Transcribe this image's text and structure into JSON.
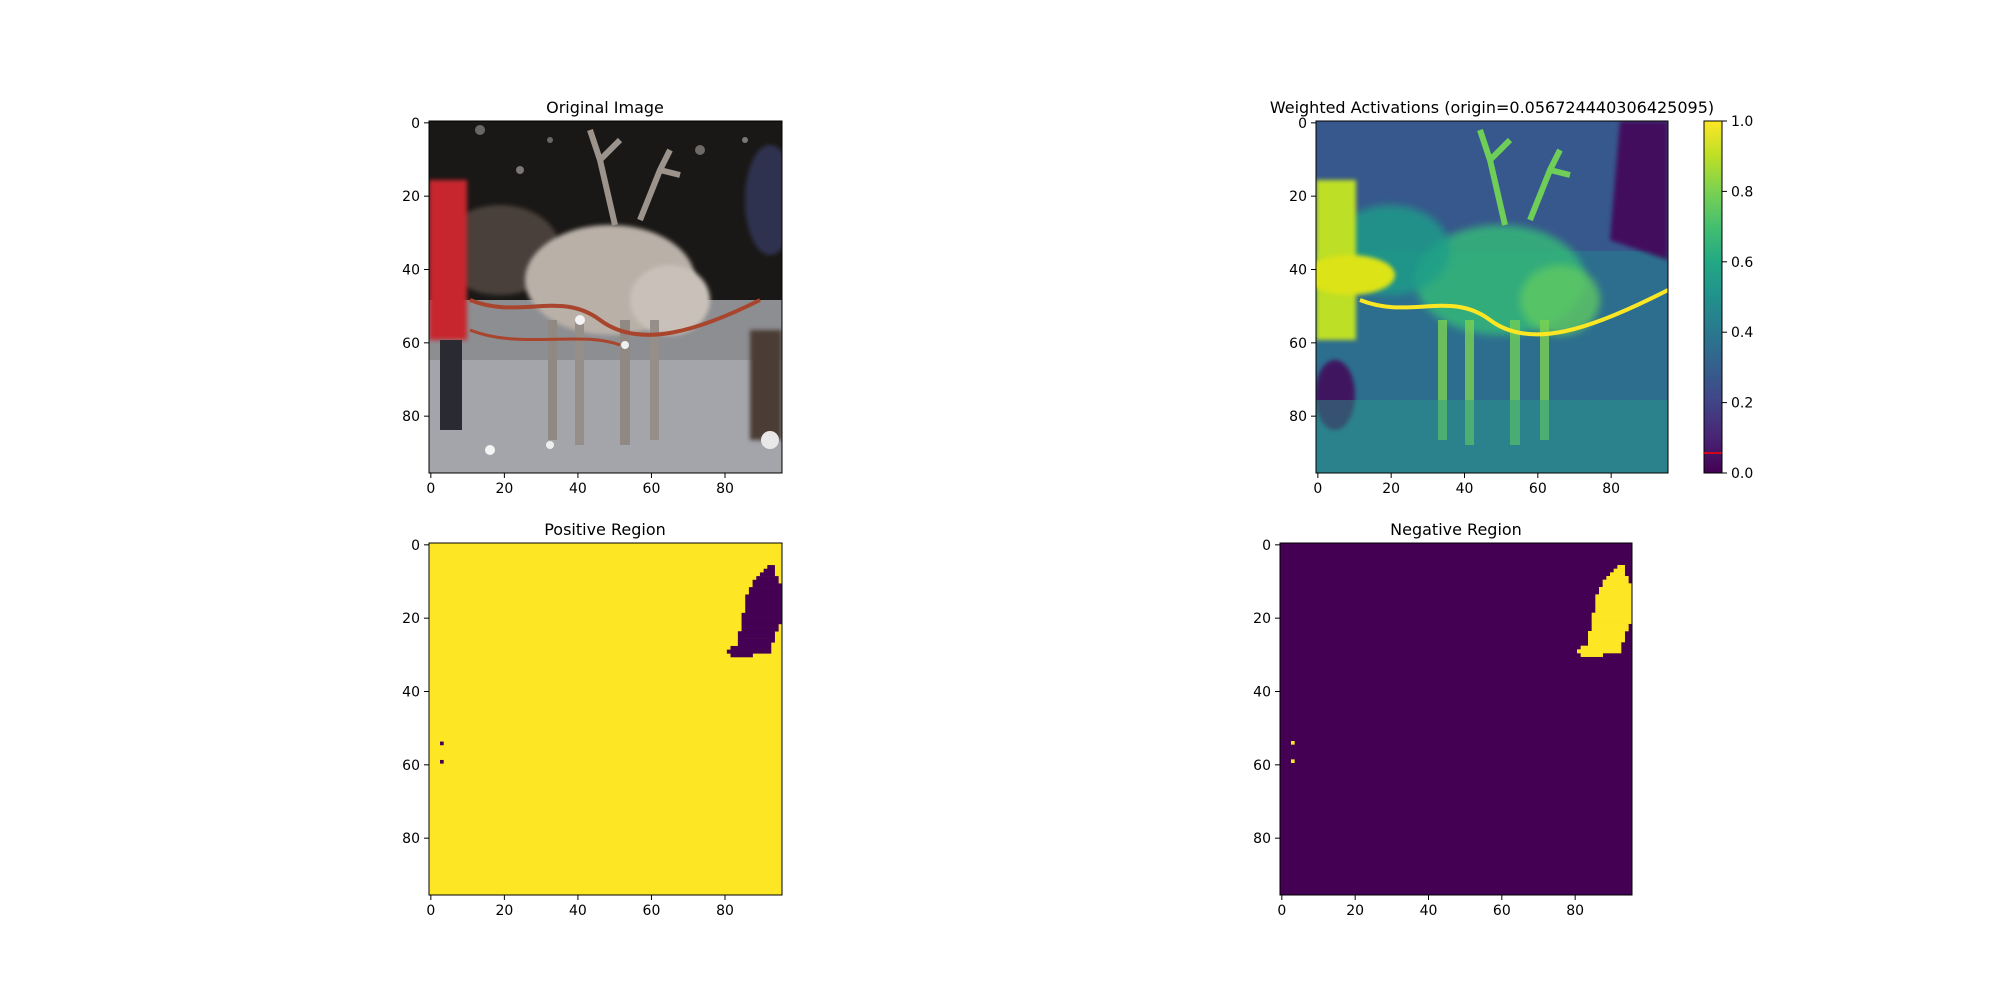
{
  "chart_data": [
    {
      "type": "image",
      "id": "original",
      "title": "Original Image",
      "xlim": [
        0,
        96
      ],
      "ylim": [
        96,
        0
      ],
      "xticks": [
        0,
        20,
        40,
        60,
        80
      ],
      "yticks": [
        0,
        20,
        40,
        60,
        80
      ],
      "content": "photo: reindeer pulling a sled at night in snow, person in red jacket at left, person in blue at right"
    },
    {
      "type": "heatmap",
      "id": "activations",
      "title": "Weighted Activations (origin=0.056724440306425095)",
      "colormap": "viridis",
      "xlim": [
        0,
        96
      ],
      "ylim": [
        96,
        0
      ],
      "xticks": [
        0,
        20,
        40,
        60,
        80
      ],
      "yticks": [
        0,
        20,
        40,
        60,
        80
      ],
      "colorbar": {
        "range": [
          0,
          1
        ],
        "ticks": [
          "0.0",
          "0.2",
          "0.4",
          "0.6",
          "0.8",
          "1.0"
        ],
        "marker_value": 0.056724440306425095,
        "marker_color": "#ff0000"
      }
    },
    {
      "type": "heatmap",
      "id": "positive",
      "title": "Positive Region",
      "colormap": "viridis",
      "background_value": 1,
      "mask_value": 0,
      "xlim": [
        0,
        96
      ],
      "ylim": [
        96,
        0
      ],
      "xticks": [
        0,
        20,
        40,
        60,
        80
      ],
      "yticks": [
        0,
        20,
        40,
        60,
        80
      ],
      "mask_blob_rows": [
        [
          6,
          92,
          94
        ],
        [
          7,
          91,
          94
        ],
        [
          8,
          90,
          94
        ],
        [
          9,
          89,
          95
        ],
        [
          10,
          88,
          95
        ],
        [
          11,
          88,
          96
        ],
        [
          12,
          87,
          96
        ],
        [
          13,
          87,
          96
        ],
        [
          14,
          86,
          96
        ],
        [
          15,
          86,
          96
        ],
        [
          16,
          86,
          96
        ],
        [
          17,
          86,
          96
        ],
        [
          18,
          86,
          96
        ],
        [
          19,
          85,
          96
        ],
        [
          20,
          85,
          96
        ],
        [
          21,
          85,
          96
        ],
        [
          22,
          85,
          95
        ],
        [
          23,
          85,
          95
        ],
        [
          24,
          84,
          94
        ],
        [
          25,
          84,
          94
        ],
        [
          26,
          84,
          94
        ],
        [
          27,
          84,
          93
        ],
        [
          28,
          82,
          93
        ],
        [
          29,
          81,
          93
        ],
        [
          30,
          82,
          88
        ]
      ],
      "mask_pixels": [
        [
          3,
          54
        ],
        [
          3,
          59
        ]
      ]
    },
    {
      "type": "heatmap",
      "id": "negative",
      "title": "Negative Region",
      "colormap": "viridis",
      "background_value": 0,
      "mask_value": 1,
      "xlim": [
        0,
        96
      ],
      "ylim": [
        96,
        0
      ],
      "xticks": [
        0,
        20,
        40,
        60,
        80
      ],
      "yticks": [
        0,
        20,
        40,
        60,
        80
      ],
      "mask_blob_rows": [
        [
          6,
          92,
          94
        ],
        [
          7,
          91,
          94
        ],
        [
          8,
          90,
          94
        ],
        [
          9,
          89,
          95
        ],
        [
          10,
          88,
          95
        ],
        [
          11,
          88,
          96
        ],
        [
          12,
          87,
          96
        ],
        [
          13,
          87,
          96
        ],
        [
          14,
          86,
          96
        ],
        [
          15,
          86,
          96
        ],
        [
          16,
          86,
          96
        ],
        [
          17,
          86,
          96
        ],
        [
          18,
          86,
          96
        ],
        [
          19,
          85,
          96
        ],
        [
          20,
          85,
          96
        ],
        [
          21,
          85,
          96
        ],
        [
          22,
          85,
          95
        ],
        [
          23,
          85,
          95
        ],
        [
          24,
          84,
          94
        ],
        [
          25,
          84,
          94
        ],
        [
          26,
          84,
          94
        ],
        [
          27,
          84,
          93
        ],
        [
          28,
          82,
          93
        ],
        [
          29,
          81,
          93
        ],
        [
          30,
          82,
          88
        ]
      ],
      "mask_pixels": [
        [
          3,
          54
        ],
        [
          3,
          59
        ]
      ]
    }
  ]
}
